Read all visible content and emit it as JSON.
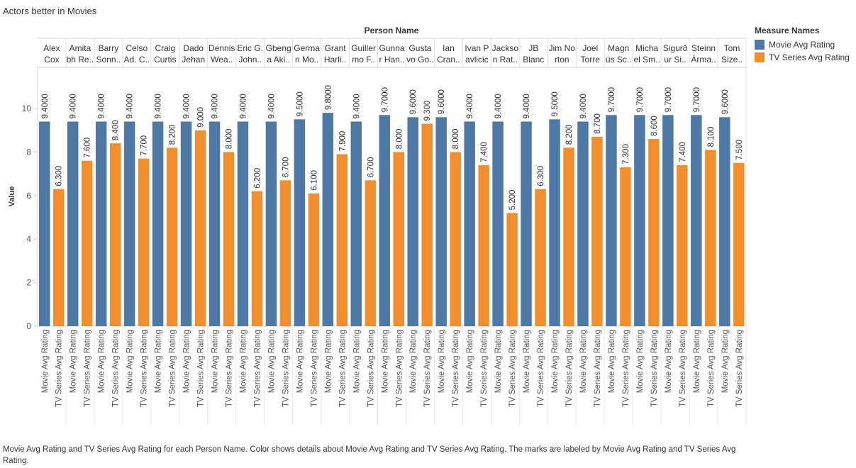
{
  "title": "Actors better in Movies",
  "caption": "Movie Avg Rating and TV Series Avg Rating for each Person Name.  Color shows details about Movie Avg Rating and TV Series Avg Rating.  The marks are labeled by Movie Avg Rating and TV Series Avg Rating.",
  "legend": {
    "title": "Measure Names",
    "items": [
      {
        "label": "Movie Avg Rating",
        "color": "#4e79a7"
      },
      {
        "label": "TV Series Avg Rating",
        "color": "#f28e2b"
      }
    ]
  },
  "chart_data": {
    "type": "bar",
    "column_header": "Person Name",
    "ylabel": "Value",
    "ylim": [
      0,
      11
    ],
    "yticks": [
      0,
      2,
      4,
      6,
      8,
      10
    ],
    "grid": false,
    "legend_position": "right",
    "categories": [
      [
        "Alex",
        "Cox"
      ],
      [
        "Amita",
        "bh Re.."
      ],
      [
        "Barry",
        "Sonn.."
      ],
      [
        "Celso",
        "Ad. C.."
      ],
      [
        "Craig",
        "Curtis"
      ],
      [
        "Dado",
        "Jehan"
      ],
      [
        "Dennis",
        "Wea.."
      ],
      [
        "Eric G.",
        "John.."
      ],
      [
        "Gbeng",
        "a Aki.."
      ],
      [
        "Germa",
        "n Mo.."
      ],
      [
        "Grant",
        "Harli.."
      ],
      [
        "Guiller",
        "mo F.."
      ],
      [
        "Gunna",
        "r Han.."
      ],
      [
        "Gusta",
        "vo Go.."
      ],
      [
        "Ian",
        "Cran.."
      ],
      [
        "Ivan P",
        "avlicic"
      ],
      [
        "Jackso",
        "n Rat.."
      ],
      [
        "JB",
        "Blanc"
      ],
      [
        "Jim No",
        "rton"
      ],
      [
        "Joel",
        "Torre"
      ],
      [
        "Magn",
        "ús Sc.."
      ],
      [
        "Micha",
        "el Sm.."
      ],
      [
        "Sigurð",
        "ur Si.."
      ],
      [
        "Steinn",
        "Árma.."
      ],
      [
        "Tom",
        "Size.."
      ]
    ],
    "series": [
      {
        "name": "Movie Avg Rating",
        "color": "#4e79a7",
        "values": [
          9.4,
          9.4,
          9.4,
          9.4,
          9.4,
          9.4,
          9.4,
          9.4,
          9.4,
          9.5,
          9.8,
          9.4,
          9.7,
          9.6,
          9.6,
          9.4,
          9.4,
          9.4,
          9.5,
          9.4,
          9.7,
          9.7,
          9.7,
          9.7,
          9.6
        ],
        "labels": [
          "9.4000",
          "9.4000",
          "9.4000",
          "9.4000",
          "9.4000",
          "9.4000",
          "9.4000",
          "9.4000",
          "9.4000",
          "9.5000",
          "9.8000",
          "9.4000",
          "9.7000",
          "9.6000",
          "9.6000",
          "9.4000",
          "9.4000",
          "9.4000",
          "9.5000",
          "9.4000",
          "9.7000",
          "9.7000",
          "9.7000",
          "9.7000",
          "9.6000"
        ]
      },
      {
        "name": "TV Series Avg Rating",
        "color": "#f28e2b",
        "values": [
          6.3,
          7.6,
          8.4,
          7.7,
          8.2,
          9.0,
          8.0,
          6.2,
          6.7,
          6.1,
          7.9,
          6.7,
          8.0,
          9.3,
          8.0,
          7.4,
          5.2,
          6.3,
          8.2,
          8.7,
          7.3,
          8.6,
          7.4,
          8.1,
          7.5
        ],
        "labels": [
          "6.300",
          "7.600",
          "8.400",
          "7.700",
          "8.200",
          "9.000",
          "8.000",
          "6.200",
          "6.700",
          "6.100",
          "7.900",
          "6.700",
          "8.000",
          "9.300",
          "8.000",
          "7.400",
          "5.200",
          "6.300",
          "8.200",
          "8.700",
          "7.300",
          "8.600",
          "7.400",
          "8.100",
          "7.500"
        ]
      }
    ]
  }
}
